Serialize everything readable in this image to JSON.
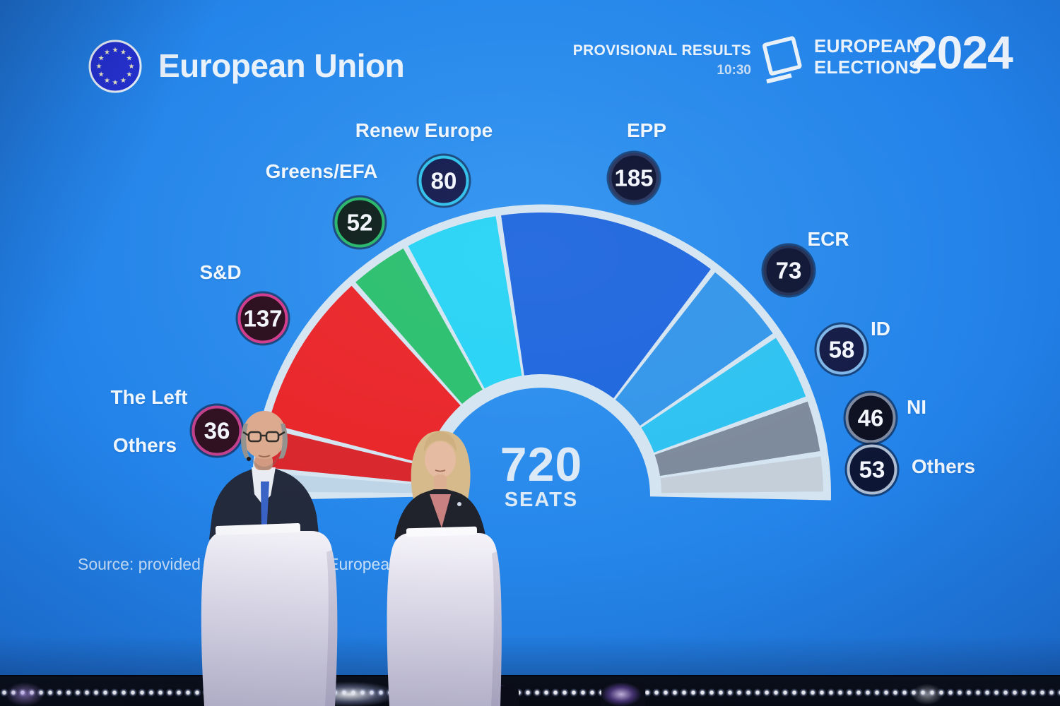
{
  "header": {
    "brand": "European Union",
    "provisional_results_label": "PROVISIONAL RESULTS",
    "time": "10:30",
    "elections_word1": "EUROPEAN",
    "elections_word2": "ELECTIONS",
    "year": "2024"
  },
  "hemicycle_center": {
    "total_seats_number": "720",
    "seats_word": "SEATS"
  },
  "source_text": "Source: provided by Verian for the European Parliament",
  "colors": {
    "screen_blue_center": "#2f93f0",
    "screen_blue_edge": "#1a66cc",
    "hemicycle_outline": "#d4e4f1",
    "label_text": "#eff6fd",
    "flag_disc": "#2531d2",
    "stage_black": "#07090f"
  },
  "chart_data": {
    "type": "hemicycle",
    "title": "European Elections 2024 — Provisional Results (10:30)",
    "total_seats": 720,
    "unit": "seats",
    "groups": [
      {
        "label": "The Left",
        "seats": 36,
        "color": "#d9262c",
        "badge_fill": "#2e1021",
        "badge_ring": "#c2408c"
      },
      {
        "label": "S&D",
        "seats": 137,
        "color": "#e92529",
        "badge_fill": "#2a0d1d",
        "badge_ring": "#d13a8c"
      },
      {
        "label": "Greens/EFA",
        "seats": 52,
        "color": "#2abf6e",
        "badge_fill": "#0d1f1b",
        "badge_ring": "#27b569"
      },
      {
        "label": "Renew Europe",
        "seats": 80,
        "color": "#27d3f5",
        "badge_fill": "#131a4e",
        "badge_ring": "#2ec0ea"
      },
      {
        "label": "EPP",
        "seats": 185,
        "color": "#1e66de",
        "badge_fill": "#0d1232",
        "badge_ring": "#27345e"
      },
      {
        "label": "ECR",
        "seats": 73,
        "color": "#3395e9",
        "badge_fill": "#0e1534",
        "badge_ring": "#223055"
      },
      {
        "label": "ID",
        "seats": 58,
        "color": "#2dc2f1",
        "badge_fill": "#131b46",
        "badge_ring": "#7fb5e8"
      },
      {
        "label": "NI",
        "seats": 46,
        "color": "#7d8a9c",
        "badge_fill": "#0c1020",
        "badge_ring": "#7e89a0"
      },
      {
        "label": "Others",
        "seats": 53,
        "color": "#c5cfda",
        "badge_fill": "#0e1635",
        "badge_ring": "#aebdd2"
      }
    ],
    "arc_layout": {
      "note": "'Others' seats are drawn split across both ends of the arc",
      "slices": [
        {
          "group": 8,
          "seats": 20,
          "color": "#bed4e7"
        },
        {
          "group": 0,
          "seats": 36
        },
        {
          "group": 1,
          "seats": 137
        },
        {
          "group": 2,
          "seats": 52
        },
        {
          "group": 3,
          "seats": 80
        },
        {
          "group": 4,
          "seats": 185
        },
        {
          "group": 5,
          "seats": 73
        },
        {
          "group": 6,
          "seats": 58
        },
        {
          "group": 7,
          "seats": 46
        },
        {
          "group": 8,
          "seats": 33
        }
      ]
    }
  }
}
